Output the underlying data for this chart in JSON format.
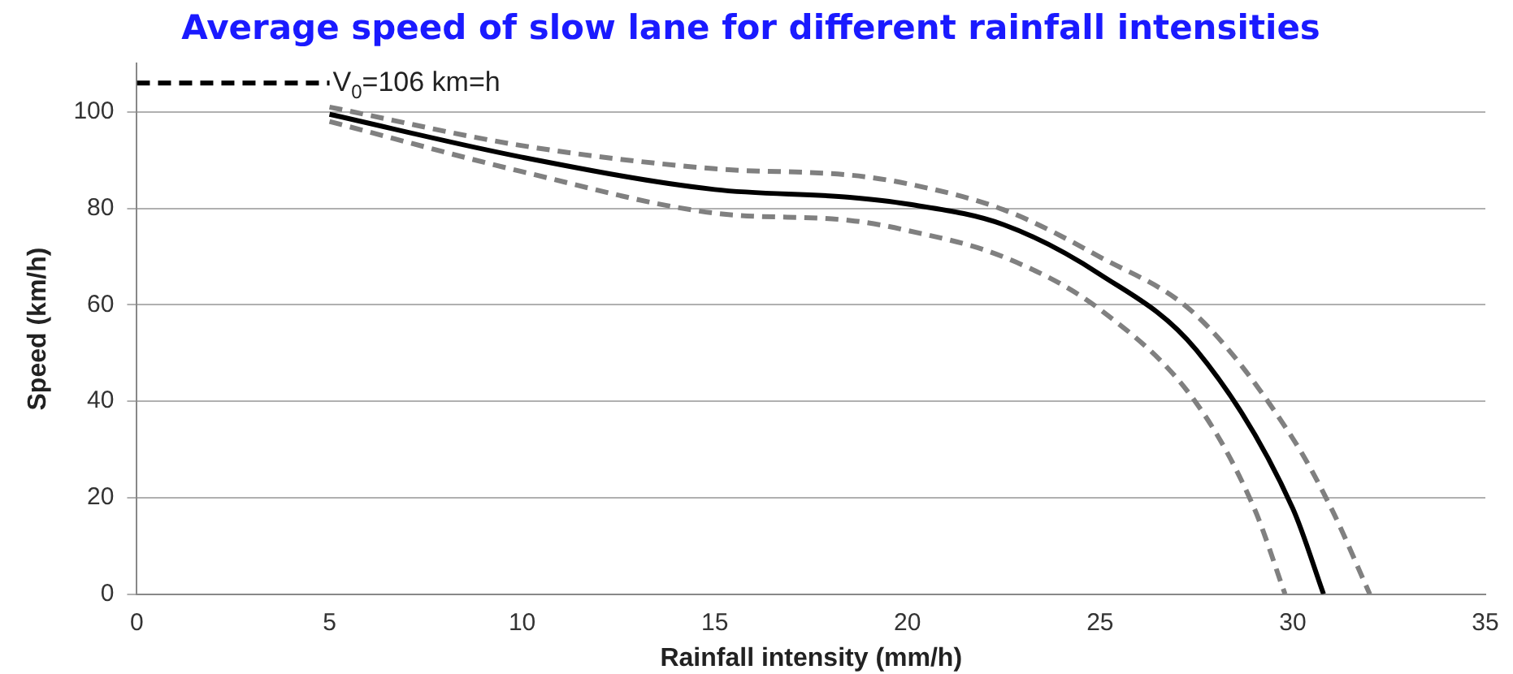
{
  "chart_data": {
    "type": "line",
    "title": "Average speed of slow lane for different rainfall intensities",
    "xlabel": "Rainfall intensity (mm/h)",
    "ylabel": "Speed (km/h)",
    "series": [
      {
        "color": "#000000",
        "line_style": "dashed",
        "x": [
          0,
          5
        ],
        "values": [
          106,
          106
        ]
      },
      {
        "color": "#808080",
        "line_style": "dashed",
        "x": [
          5,
          10,
          15,
          18.5,
          20,
          22.5,
          25,
          27.5,
          30,
          31,
          32
        ],
        "values": [
          101,
          93,
          88.2,
          86.9,
          85.1,
          79.7,
          69.9,
          57.8,
          32.3,
          17.8,
          0
        ]
      },
      {
        "color": "#808080",
        "line_style": "dashed",
        "x": [
          5,
          10,
          15,
          18.5,
          20,
          22.5,
          25,
          27.5,
          29,
          29.8
        ],
        "values": [
          98,
          87.6,
          79,
          77.5,
          75.4,
          69.9,
          59,
          39.6,
          17.8,
          0
        ]
      },
      {
        "color": "#000000",
        "line_style": "solid",
        "x": [
          5,
          10,
          15,
          18.5,
          20,
          22.5,
          25,
          27.5,
          30,
          30.8
        ],
        "values": [
          99.5,
          90.6,
          83.9,
          82.3,
          80.9,
          76.6,
          66.3,
          50.6,
          17.8,
          0
        ]
      }
    ],
    "annotations": [
      {
        "text": "V$_{0}$=106 km=h",
        "x": 5,
        "y": 106
      }
    ],
    "xlim": [
      0,
      35
    ],
    "xticks": [
      0,
      5,
      10,
      15,
      20,
      25,
      30,
      35
    ],
    "ylim": [
      0,
      110
    ],
    "yticks": [
      0,
      20,
      40,
      60,
      80,
      100
    ],
    "grid": "y",
    "legend": false,
    "marker": "none"
  }
}
